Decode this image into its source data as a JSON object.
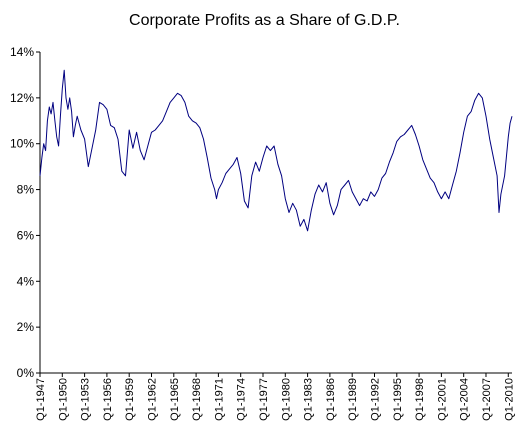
{
  "chart_data": {
    "type": "line",
    "title": "Corporate Profits as a Share of G.D.P.",
    "xlabel": "",
    "ylabel": "",
    "ylim": [
      0,
      14
    ],
    "yticks": [
      "0%",
      "2%",
      "4%",
      "6%",
      "8%",
      "10%",
      "12%",
      "14%"
    ],
    "ytick_values": [
      0,
      2,
      4,
      6,
      8,
      10,
      12,
      14
    ],
    "xticks": [
      "Q1-1947",
      "Q1-1950",
      "Q1-1953",
      "Q1-1956",
      "Q1-1959",
      "Q1-1962",
      "Q1-1965",
      "Q1-1968",
      "Q1-1971",
      "Q1-1974",
      "Q1-1977",
      "Q1-1980",
      "Q1-1983",
      "Q1-1986",
      "Q1-1989",
      "Q1-1992",
      "Q1-1995",
      "Q1-1998",
      "Q1-2001",
      "Q1-2004",
      "Q1-2007",
      "Q1-2010"
    ],
    "xtick_years": [
      1947,
      1950,
      1953,
      1956,
      1959,
      1962,
      1965,
      1968,
      1971,
      1974,
      1977,
      1980,
      1983,
      1986,
      1989,
      1992,
      1995,
      1998,
      2001,
      2004,
      2007,
      2010
    ],
    "xlim_years": [
      1947,
      2010.5
    ],
    "grid": false,
    "legend": "none",
    "series": [
      {
        "color": "#000080",
        "x": [
          1947.0,
          1947.25,
          1947.5,
          1947.75,
          1948.0,
          1948.25,
          1948.5,
          1948.75,
          1949.0,
          1949.25,
          1949.5,
          1949.75,
          1950.0,
          1950.25,
          1950.5,
          1950.75,
          1951.0,
          1951.25,
          1951.5,
          1951.75,
          1952.0,
          1952.5,
          1953.0,
          1953.5,
          1954.0,
          1954.5,
          1955.0,
          1955.5,
          1956.0,
          1956.5,
          1957.0,
          1957.5,
          1958.0,
          1958.5,
          1959.0,
          1959.5,
          1960.0,
          1960.5,
          1961.0,
          1961.5,
          1962.0,
          1962.5,
          1963.0,
          1963.5,
          1964.0,
          1964.5,
          1965.0,
          1965.5,
          1966.0,
          1966.5,
          1967.0,
          1967.5,
          1968.0,
          1968.5,
          1969.0,
          1969.5,
          1970.0,
          1970.5,
          1970.75,
          1971.0,
          1971.5,
          1972.0,
          1972.5,
          1973.0,
          1973.5,
          1974.0,
          1974.5,
          1975.0,
          1975.5,
          1976.0,
          1976.5,
          1977.0,
          1977.5,
          1978.0,
          1978.5,
          1979.0,
          1979.5,
          1980.0,
          1980.5,
          1981.0,
          1981.5,
          1982.0,
          1982.5,
          1983.0,
          1983.5,
          1984.0,
          1984.5,
          1985.0,
          1985.5,
          1986.0,
          1986.5,
          1987.0,
          1987.5,
          1988.0,
          1988.5,
          1989.0,
          1989.5,
          1990.0,
          1990.5,
          1991.0,
          1991.5,
          1992.0,
          1992.5,
          1993.0,
          1993.5,
          1994.0,
          1994.5,
          1995.0,
          1995.5,
          1996.0,
          1996.5,
          1997.0,
          1997.5,
          1998.0,
          1998.5,
          1999.0,
          1999.5,
          2000.0,
          2000.5,
          2001.0,
          2001.5,
          2002.0,
          2002.5,
          2003.0,
          2003.5,
          2004.0,
          2004.5,
          2005.0,
          2005.5,
          2006.0,
          2006.5,
          2007.0,
          2007.5,
          2008.0,
          2008.5,
          2008.75,
          2009.0,
          2009.5,
          2010.0,
          2010.25,
          2010.5
        ],
        "values": [
          8.6,
          9.4,
          10.0,
          9.7,
          11.0,
          11.6,
          11.3,
          11.8,
          11.0,
          10.3,
          9.9,
          11.2,
          12.4,
          13.2,
          12.0,
          11.5,
          12.0,
          11.4,
          10.3,
          10.8,
          11.2,
          10.6,
          10.2,
          9.0,
          9.8,
          10.6,
          11.8,
          11.7,
          11.5,
          10.8,
          10.7,
          10.2,
          8.8,
          8.6,
          10.6,
          9.8,
          10.5,
          9.7,
          9.3,
          9.9,
          10.5,
          10.6,
          10.8,
          11.0,
          11.4,
          11.8,
          12.0,
          12.2,
          12.1,
          11.8,
          11.2,
          11.0,
          10.9,
          10.7,
          10.2,
          9.4,
          8.5,
          8.0,
          7.6,
          8.0,
          8.3,
          8.7,
          8.9,
          9.1,
          9.4,
          8.7,
          7.5,
          7.2,
          8.6,
          9.2,
          8.8,
          9.4,
          9.9,
          9.7,
          9.9,
          9.1,
          8.6,
          7.6,
          7.0,
          7.4,
          7.1,
          6.4,
          6.7,
          6.2,
          7.1,
          7.8,
          8.2,
          7.9,
          8.3,
          7.4,
          6.9,
          7.3,
          8.0,
          8.2,
          8.4,
          7.9,
          7.6,
          7.3,
          7.6,
          7.5,
          7.9,
          7.7,
          8.0,
          8.5,
          8.7,
          9.2,
          9.6,
          10.1,
          10.3,
          10.4,
          10.6,
          10.8,
          10.4,
          9.9,
          9.3,
          8.9,
          8.5,
          8.3,
          7.9,
          7.6,
          7.9,
          7.6,
          8.2,
          8.8,
          9.6,
          10.5,
          11.2,
          11.4,
          11.9,
          12.2,
          12.0,
          11.2,
          10.2,
          9.4,
          8.6,
          7.0,
          7.8,
          8.6,
          10.3,
          10.9,
          11.2
        ]
      }
    ]
  }
}
